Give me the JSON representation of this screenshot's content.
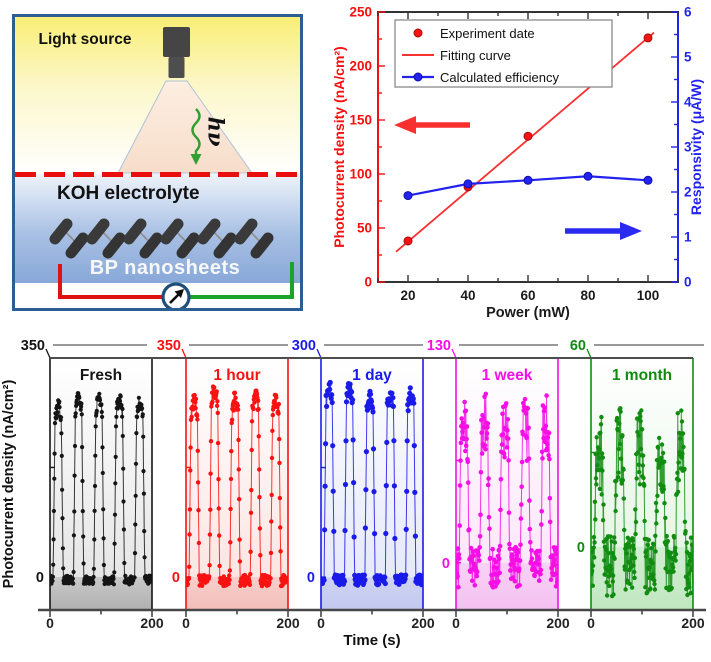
{
  "schematic": {
    "light_source_label": "Light source",
    "hv_label": "hν",
    "koh_label": "KOH electrolyte",
    "bp_label": "BP nanosheets",
    "colors": {
      "border": "#2d5e93",
      "dashed_surface_line": "#e90f0f",
      "wire_red": "#e01313",
      "wire_green": "#1ba32b",
      "meter_ring": "#1f4e79",
      "lamp_body": "#454545",
      "nanosheet": "#3a3a3a",
      "photon_arrow_green": "#2fa02f"
    }
  },
  "chart_data": [
    {
      "id": "power-responsivity",
      "type": "line",
      "xlabel": "Power (mW)",
      "xlim": [
        10,
        110
      ],
      "xticks": [
        20,
        40,
        60,
        80,
        100
      ],
      "x": [
        20,
        40,
        60,
        80,
        100
      ],
      "left_axis": {
        "label": "Photocurrent density (nA/cm²)",
        "color": "#f80f0f",
        "lim": [
          0,
          250
        ],
        "ticks": [
          0,
          50,
          100,
          150,
          200,
          250
        ]
      },
      "right_axis": {
        "label": "Responsivity (μA/W)",
        "color": "#2323f0",
        "lim": [
          0,
          6
        ],
        "ticks": [
          0,
          1,
          2,
          3,
          4,
          5,
          6
        ]
      },
      "series": [
        {
          "name": "Experiment date",
          "axis": "left",
          "style": "scatter",
          "color": "#f81212",
          "values": [
            38,
            88,
            135,
            188,
            226
          ]
        },
        {
          "name": "Fitting curve",
          "axis": "left",
          "style": "line",
          "color": "#f83030",
          "fit_endpoints": {
            "x": [
              16,
              102
            ],
            "y": [
              28,
              231
            ]
          }
        },
        {
          "name": "Calculated efficiency",
          "axis": "right",
          "style": "line+scatter",
          "color": "#2323f0",
          "values": [
            1.92,
            2.18,
            2.26,
            2.35,
            2.26
          ]
        }
      ],
      "legend": {
        "position": "top-left",
        "entries": [
          "Experiment date",
          "Fitting curve",
          "Calculated efficiency"
        ]
      },
      "annotations": [
        {
          "type": "arrow",
          "direction": "left",
          "color": "#f83030",
          "meaning": "points to left axis"
        },
        {
          "type": "arrow",
          "direction": "right",
          "color": "#2a2af0",
          "meaning": "points to right axis"
        }
      ],
      "grid": false
    },
    {
      "id": "stability-panels",
      "type": "scatter",
      "xlabel": "Time (s)",
      "ylabel": "Photocurrent density (nA/cm²)",
      "xlim": [
        0,
        200
      ],
      "xticks": [
        0,
        100,
        200
      ],
      "xtick_labels": [
        "0",
        "200"
      ],
      "cycles": 5,
      "period_s": 40,
      "panels": [
        {
          "label": "Fresh",
          "scale_label": "350",
          "scale_max": 350,
          "ymin": -53,
          "zero_label": "0",
          "color": "#151515",
          "tint_light": "#e6e6e6",
          "band": [
            "#c9c9c9",
            "#b0b0b0"
          ],
          "peak": 272,
          "noise_on": 11,
          "noise_off": 7,
          "off_base": -5,
          "step": 0.7,
          "marker_r": 2.1,
          "seed": 101
        },
        {
          "label": "1 hour",
          "scale_label": "350",
          "scale_max": 350,
          "ymin": -53,
          "zero_label": "0",
          "color": "#f81212",
          "tint_light": "#fbe6e3",
          "band": [
            "#f7cfcb",
            "#f3beba"
          ],
          "peak": 279,
          "noise_on": 13,
          "noise_off": 9,
          "off_base": -6,
          "step": 0.7,
          "marker_r": 2.2,
          "seed": 202
        },
        {
          "label": "1 day",
          "scale_label": "300",
          "scale_max": 300,
          "ymin": -45,
          "zero_label": "0",
          "color": "#1b1be8",
          "tint_light": "#e6e9f9",
          "band": [
            "#cfd4f2",
            "#c2c8ef"
          ],
          "peak": 243,
          "noise_on": 11,
          "noise_off": 7,
          "off_base": -4,
          "step": 1.0,
          "marker_r": 2.6,
          "seed": 303
        },
        {
          "label": "1 week",
          "scale_label": "130",
          "scale_max": 130,
          "ymin": -30,
          "zero_label": "0",
          "color": "#f50fe6",
          "tint_light": "#fce7fa",
          "band": [
            "#f9d2f5",
            "#f5c0f1"
          ],
          "peak": 85,
          "noise_on": 19,
          "noise_off": 13,
          "off_base": -3,
          "step": 0.8,
          "marker_r": 2.3,
          "seed": 404
        },
        {
          "label": "1 month",
          "scale_label": "60",
          "scale_max": 60,
          "ymin": -20,
          "zero_label": "0",
          "color": "#118c11",
          "tint_light": "#e6f6e6",
          "band": [
            "#d2eed2",
            "#c0e7c0"
          ],
          "peak": 30,
          "noise_on": 13,
          "noise_off": 10,
          "off_base": -6,
          "step": 0.7,
          "marker_r": 2.2,
          "seed": 505
        }
      ],
      "grid": false
    }
  ]
}
